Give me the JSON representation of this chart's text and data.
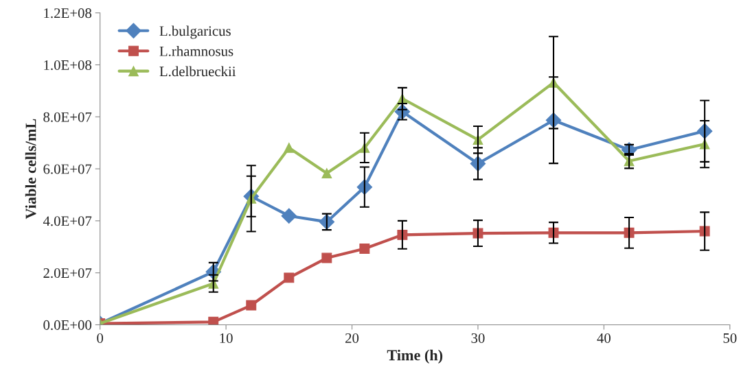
{
  "chart_data": {
    "type": "line",
    "xlabel": "Time (h)",
    "ylabel": "Viable cells/mL",
    "x": [
      0,
      9,
      12,
      15,
      18,
      21,
      24,
      30,
      36,
      42,
      48
    ],
    "series": [
      {
        "name": "L.bulgaricus",
        "color": "#4f81bd",
        "marker": "diamond",
        "values": [
          500000,
          20400000,
          49400000,
          41900000,
          39600000,
          53000000,
          82000000,
          62000000,
          78700000,
          67300000,
          74500000
        ],
        "errors": [
          null,
          3500000,
          7800000,
          null,
          3100000,
          7700000,
          3100000,
          6100000,
          16600000,
          2000000,
          11800000
        ]
      },
      {
        "name": "L.rhamnosus",
        "color": "#c0504d",
        "marker": "square",
        "values": [
          500000,
          1100000,
          7500000,
          18100000,
          25700000,
          29300000,
          34600000,
          35200000,
          35400000,
          35400000,
          36000000
        ],
        "errors": [
          null,
          null,
          null,
          null,
          null,
          null,
          5400000,
          5000000,
          4000000,
          5900000,
          7300000
        ]
      },
      {
        "name": "L.delbrueckii",
        "color": "#9bbb59",
        "marker": "triangle",
        "values": [
          500000,
          15900000,
          48600000,
          68100000,
          58300000,
          68100000,
          87000000,
          71200000,
          93200000,
          63000000,
          69500000
        ],
        "errors": [
          null,
          3300000,
          12700000,
          null,
          null,
          5700000,
          4200000,
          5200000,
          17700000,
          2800000,
          9000000
        ]
      }
    ],
    "xlim": [
      0,
      50
    ],
    "xticks": [
      0,
      10,
      20,
      30,
      40,
      50
    ],
    "ylim": [
      0,
      120000000
    ],
    "yticks": [
      {
        "value": 0,
        "label": "0.0E+00"
      },
      {
        "value": 20000000,
        "label": "2.0E+07"
      },
      {
        "value": 40000000,
        "label": "4.0E+07"
      },
      {
        "value": 60000000,
        "label": "6.0E+07"
      },
      {
        "value": 80000000,
        "label": "8.0E+07"
      },
      {
        "value": 100000000,
        "label": "1.0E+08"
      },
      {
        "value": 120000000,
        "label": "1.2E+08"
      }
    ],
    "grid": false,
    "legend": "top left",
    "line_style": "solid"
  }
}
